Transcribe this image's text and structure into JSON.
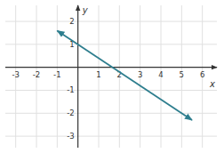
{
  "chart_data": {
    "type": "line",
    "xlabel": "x",
    "ylabel": "y",
    "x": [
      -1,
      5.5
    ],
    "values": [
      1.6,
      -2.3
    ],
    "color": "#2E7E8E",
    "marker": "arrow",
    "xlim": [
      -3.5,
      6.7
    ],
    "ylim": [
      -3.5,
      2.7
    ],
    "xticks": [
      -3,
      -2,
      -1,
      1,
      2,
      3,
      4,
      5,
      6
    ],
    "yticks": [
      -3,
      -2,
      -1,
      1,
      2
    ],
    "grid": true
  }
}
